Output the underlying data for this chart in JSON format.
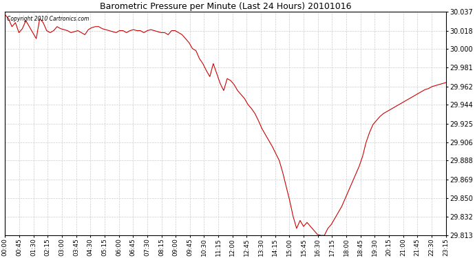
{
  "title": "Barometric Pressure per Minute (Last 24 Hours) 20101016",
  "copyright_text": "Copyright 2010 Cartronics.com",
  "line_color": "#cc0000",
  "background_color": "#ffffff",
  "grid_color": "#cccccc",
  "ylim": [
    29.813,
    30.037
  ],
  "yticks": [
    29.813,
    29.832,
    29.85,
    29.869,
    29.888,
    29.906,
    29.925,
    29.944,
    29.962,
    29.981,
    30.0,
    30.018,
    30.037
  ],
  "xtick_labels": [
    "00:00",
    "00:45",
    "01:30",
    "02:15",
    "03:00",
    "03:45",
    "04:30",
    "05:15",
    "06:00",
    "06:45",
    "07:30",
    "08:15",
    "09:00",
    "09:45",
    "10:30",
    "11:15",
    "12:00",
    "12:45",
    "13:30",
    "14:15",
    "15:00",
    "15:45",
    "16:30",
    "17:15",
    "18:00",
    "18:45",
    "19:30",
    "20:15",
    "21:00",
    "21:45",
    "22:30",
    "23:15"
  ],
  "pressure_data": [
    30.034,
    30.03,
    30.022,
    30.026,
    30.016,
    30.02,
    30.028,
    30.022,
    30.016,
    30.01,
    30.03,
    30.026,
    30.018,
    30.016,
    30.018,
    30.022,
    30.02,
    30.019,
    30.018,
    30.016,
    30.017,
    30.018,
    30.016,
    30.014,
    30.019,
    30.021,
    30.022,
    30.022,
    30.02,
    30.019,
    30.018,
    30.017,
    30.016,
    30.018,
    30.018,
    30.016,
    30.018,
    30.019,
    30.018,
    30.018,
    30.016,
    30.018,
    30.019,
    30.018,
    30.017,
    30.016,
    30.016,
    30.014,
    30.018,
    30.018,
    30.016,
    30.014,
    30.01,
    30.006,
    30.0,
    29.998,
    29.99,
    29.985,
    29.978,
    29.972,
    29.985,
    29.975,
    29.965,
    29.958,
    29.97,
    29.968,
    29.964,
    29.958,
    29.954,
    29.95,
    29.944,
    29.94,
    29.935,
    29.928,
    29.92,
    29.914,
    29.908,
    29.902,
    29.895,
    29.888,
    29.876,
    29.862,
    29.848,
    29.832,
    29.82,
    29.828,
    29.822,
    29.826,
    29.822,
    29.818,
    29.814,
    29.813,
    29.813,
    29.82,
    29.824,
    29.83,
    29.836,
    29.842,
    29.85,
    29.858,
    29.866,
    29.874,
    29.882,
    29.892,
    29.906,
    29.916,
    29.924,
    29.928,
    29.932,
    29.935,
    29.937,
    29.939,
    29.941,
    29.943,
    29.945,
    29.947,
    29.949,
    29.951,
    29.953,
    29.955,
    29.957,
    29.959,
    29.96,
    29.962,
    29.963,
    29.964,
    29.965,
    29.966
  ],
  "n_xticks": 32
}
